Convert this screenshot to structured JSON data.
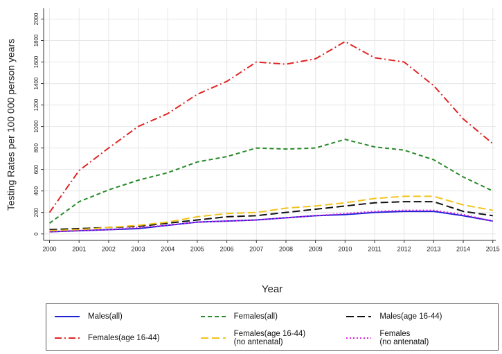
{
  "chart_data": {
    "type": "line",
    "x_label": "Year",
    "y_label": "Testing Rates per 100 000 person years",
    "x": [
      2000,
      2001,
      2002,
      2003,
      2004,
      2005,
      2006,
      2007,
      2008,
      2009,
      2010,
      2011,
      2012,
      2013,
      2014,
      2015
    ],
    "xlim": [
      1999.8,
      2015.1
    ],
    "xticks": [
      2000,
      2001,
      2002,
      2003,
      2004,
      2005,
      2006,
      2007,
      2008,
      2009,
      2010,
      2011,
      2012,
      2013,
      2014,
      2015
    ],
    "ylim": [
      -60,
      2100
    ],
    "yticks": [
      0,
      200,
      400,
      600,
      800,
      1000,
      1200,
      1400,
      1600,
      1800,
      2000
    ],
    "grid": true,
    "legend": "bottom",
    "series": [
      {
        "name": "Males(all)",
        "color": "#1f1fd6",
        "dash": "solid",
        "values": [
          20,
          30,
          40,
          50,
          80,
          110,
          120,
          130,
          150,
          170,
          180,
          200,
          210,
          210,
          170,
          120
        ]
      },
      {
        "name": "Females(all)",
        "color": "#2a8a2a",
        "dash": "dashed",
        "values": [
          100,
          300,
          410,
          500,
          570,
          670,
          720,
          800,
          790,
          800,
          880,
          810,
          780,
          690,
          530,
          400
        ]
      },
      {
        "name": "Males(age 16-44)",
        "color": "#111111",
        "dash": "longdash",
        "values": [
          40,
          50,
          60,
          70,
          100,
          130,
          160,
          170,
          200,
          230,
          260,
          290,
          300,
          300,
          210,
          170
        ]
      },
      {
        "name": "Females(age 16-44)",
        "color": "#e02424",
        "dash": "dashdot",
        "values": [
          200,
          590,
          800,
          1000,
          1120,
          1300,
          1420,
          1600,
          1580,
          1630,
          1790,
          1640,
          1600,
          1380,
          1070,
          840
        ]
      },
      {
        "name": "Females(age 16-44)\n(no antenatal)",
        "color": "#f2c21b",
        "dash": "longdash",
        "values": [
          30,
          40,
          60,
          80,
          110,
          160,
          190,
          200,
          240,
          260,
          290,
          330,
          350,
          350,
          270,
          220
        ]
      },
      {
        "name": "Females\n(no antenatal)",
        "color": "#e020e0",
        "dash": "dotted",
        "values": [
          20,
          30,
          40,
          60,
          80,
          110,
          120,
          130,
          150,
          170,
          190,
          210,
          220,
          220,
          180,
          120
        ]
      }
    ]
  }
}
